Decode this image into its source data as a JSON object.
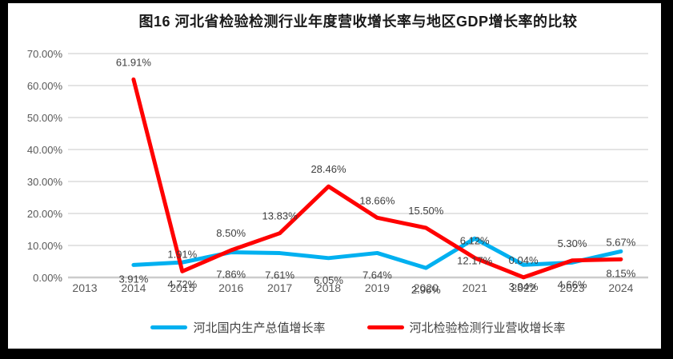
{
  "title": "图16 河北省检验检测行业年度营收增长率与地区GDP增长率的比较",
  "frame": {
    "background": "#000000",
    "panel_background": "#ffffff"
  },
  "legend": [
    {
      "label": "河北国内生产总值增长率",
      "color": "#00b0f0"
    },
    {
      "label": "河北检验检测行业营收增长率",
      "color": "#ff0000"
    }
  ],
  "chart_data": {
    "type": "line",
    "title": "图16 河北省检验检测行业年度营收增长率与地区GDP增长率的比较",
    "xlabel": "",
    "ylabel": "",
    "ylim": [
      0,
      70
    ],
    "ytick_step": 10,
    "ytick_labels": [
      "0.00%",
      "10.00%",
      "20.00%",
      "30.00%",
      "40.00%",
      "50.00%",
      "60.00%",
      "70.00%"
    ],
    "grid": true,
    "legend_position": "bottom",
    "categories": [
      "2013",
      "2014",
      "2015",
      "2016",
      "2017",
      "2018",
      "2019",
      "2020",
      "2021",
      "2022",
      "2023",
      "2024"
    ],
    "series": [
      {
        "name": "河北国内生产总值增长率",
        "color": "#00b0f0",
        "label_position": "below",
        "years": [
          "2014",
          "2015",
          "2016",
          "2017",
          "2018",
          "2019",
          "2020",
          "2021",
          "2022",
          "2023",
          "2024"
        ],
        "values": [
          3.91,
          4.72,
          7.86,
          7.61,
          6.05,
          7.64,
          2.96,
          12.17,
          3.94,
          4.66,
          8.15
        ],
        "labels": [
          "3.91%",
          "4.72%",
          "7.86%",
          "7.61%",
          "6.05%",
          "7.64%",
          "2.96%",
          "12.17%",
          "3.94%",
          "4.66%",
          "8.15%"
        ]
      },
      {
        "name": "河北检验检测行业营收增长率",
        "color": "#ff0000",
        "label_position": "above",
        "years": [
          "2014",
          "2015",
          "2016",
          "2017",
          "2018",
          "2019",
          "2020",
          "2021",
          "2022",
          "2023",
          "2024"
        ],
        "values": [
          61.91,
          1.91,
          8.5,
          13.83,
          28.46,
          18.66,
          15.5,
          6.12,
          0.04,
          5.3,
          5.67
        ],
        "labels": [
          "61.91%",
          "1.91%",
          "8.50%",
          "13.83%",
          "28.46%",
          "18.66%",
          "15.50%",
          "6.12%",
          "0.04%",
          "5.30%",
          "5.67%"
        ]
      }
    ]
  }
}
